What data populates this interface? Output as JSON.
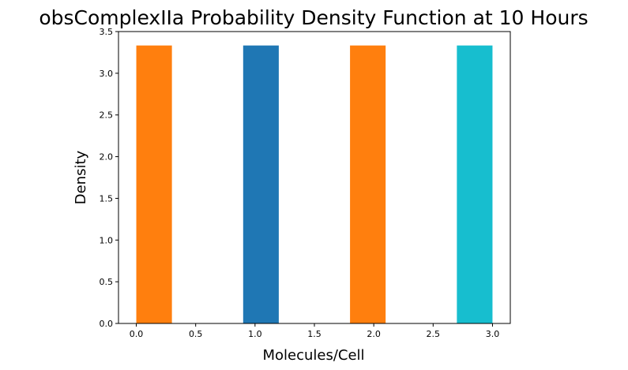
{
  "chart_data": {
    "type": "bar",
    "title": "obsComplexIIa Probability Density Function at 10 Hours",
    "xlabel": "Molecules/Cell",
    "ylabel": "Density",
    "xlim": [
      -0.15,
      3.15
    ],
    "ylim": [
      0,
      3.5
    ],
    "xticks": [
      "0.0",
      "0.5",
      "1.0",
      "1.5",
      "2.0",
      "2.5",
      "3.0"
    ],
    "xtick_values": [
      0,
      0.5,
      1,
      1.5,
      2,
      2.5,
      3
    ],
    "yticks": [
      "0.0",
      "0.5",
      "1.0",
      "1.5",
      "2.0",
      "2.5",
      "3.0",
      "3.5"
    ],
    "ytick_values": [
      0,
      0.5,
      1,
      1.5,
      2,
      2.5,
      3,
      3.5
    ],
    "bars": [
      {
        "x_start": 0.0,
        "x_end": 0.3,
        "value": 3.333,
        "color": "#ff7f0e"
      },
      {
        "x_start": 0.9,
        "x_end": 1.2,
        "value": 3.333,
        "color": "#1f77b4"
      },
      {
        "x_start": 1.8,
        "x_end": 2.1,
        "value": 3.333,
        "color": "#ff7f0e"
      },
      {
        "x_start": 2.7,
        "x_end": 3.0,
        "value": 3.333,
        "color": "#17becf"
      }
    ],
    "grid": false,
    "legend": "none"
  }
}
